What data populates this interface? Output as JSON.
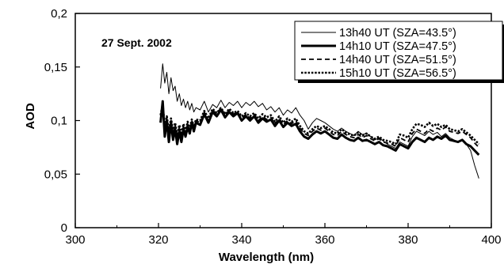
{
  "chart_data": {
    "type": "line",
    "annotation": "27 Sept. 2002",
    "xlabel": "Wavelength (nm)",
    "ylabel": "AOD",
    "xlim": [
      300,
      400
    ],
    "ylim": [
      0,
      0.2
    ],
    "x_ticks": [
      300,
      320,
      340,
      360,
      380,
      400
    ],
    "x_tick_labels": [
      "300",
      "320",
      "340",
      "360",
      "380",
      "400"
    ],
    "y_ticks": [
      0,
      0.05,
      0.1,
      0.15,
      0.2
    ],
    "y_tick_labels": [
      "0",
      "0,05",
      "0,1",
      "0,15",
      "0,2"
    ],
    "grid": false,
    "legend_position": "top-right",
    "series": [
      {
        "name": "13h40 UT (SZA=43.5°)",
        "line_style": "thin-solid",
        "color": "#000000",
        "x": [
          320.5,
          321,
          321.5,
          322,
          322.5,
          323,
          323.5,
          324,
          324.5,
          325,
          325.5,
          326,
          326.5,
          327,
          327.5,
          328,
          328.5,
          329,
          330,
          331,
          332,
          333,
          334,
          335,
          336,
          337,
          338,
          339,
          340,
          341,
          342,
          343,
          344,
          345,
          346,
          347,
          348,
          349,
          350,
          351,
          352,
          353,
          354,
          355,
          356,
          357,
          358,
          359,
          360,
          361,
          362,
          363,
          364,
          365,
          366,
          367,
          368,
          369,
          370,
          371,
          372,
          373,
          374,
          375,
          376,
          377,
          378,
          379,
          380,
          381,
          382,
          383,
          384,
          385,
          386,
          387,
          388,
          389,
          390,
          391,
          392,
          393,
          394,
          395,
          396,
          397
        ],
        "y": [
          0.13,
          0.153,
          0.135,
          0.145,
          0.125,
          0.14,
          0.128,
          0.132,
          0.118,
          0.125,
          0.114,
          0.12,
          0.112,
          0.118,
          0.11,
          0.116,
          0.108,
          0.112,
          0.11,
          0.118,
          0.108,
          0.115,
          0.112,
          0.119,
          0.112,
          0.117,
          0.114,
          0.118,
          0.112,
          0.117,
          0.114,
          0.118,
          0.113,
          0.116,
          0.11,
          0.113,
          0.108,
          0.112,
          0.105,
          0.11,
          0.107,
          0.112,
          0.105,
          0.1,
          0.092,
          0.098,
          0.102,
          0.1,
          0.098,
          0.095,
          0.092,
          0.09,
          0.093,
          0.09,
          0.088,
          0.086,
          0.09,
          0.087,
          0.088,
          0.085,
          0.082,
          0.084,
          0.081,
          0.078,
          0.076,
          0.074,
          0.08,
          0.078,
          0.076,
          0.085,
          0.09,
          0.088,
          0.086,
          0.09,
          0.087,
          0.089,
          0.085,
          0.088,
          0.084,
          0.082,
          0.08,
          0.082,
          0.078,
          0.072,
          0.058,
          0.046
        ]
      },
      {
        "name": "14h10 UT (SZA=47.5°)",
        "line_style": "thick-solid",
        "color": "#000000",
        "x": [
          320.5,
          321,
          321.5,
          322,
          322.5,
          323,
          323.5,
          324,
          324.5,
          325,
          325.5,
          326,
          326.5,
          327,
          327.5,
          328,
          328.5,
          329,
          330,
          331,
          332,
          333,
          334,
          335,
          336,
          337,
          338,
          339,
          340,
          341,
          342,
          343,
          344,
          345,
          346,
          347,
          348,
          349,
          350,
          351,
          352,
          353,
          354,
          355,
          356,
          357,
          358,
          359,
          360,
          361,
          362,
          363,
          364,
          365,
          366,
          367,
          368,
          369,
          370,
          371,
          372,
          373,
          374,
          375,
          376,
          377,
          378,
          379,
          380,
          381,
          382,
          383,
          384,
          385,
          386,
          387,
          388,
          389,
          390,
          391,
          392,
          393,
          394,
          395,
          396,
          397
        ],
        "y": [
          0.098,
          0.118,
          0.085,
          0.1,
          0.08,
          0.098,
          0.082,
          0.092,
          0.078,
          0.09,
          0.08,
          0.092,
          0.085,
          0.094,
          0.088,
          0.098,
          0.09,
          0.098,
          0.096,
          0.106,
          0.098,
          0.108,
          0.104,
          0.11,
          0.103,
          0.108,
          0.104,
          0.107,
          0.1,
          0.104,
          0.1,
          0.104,
          0.098,
          0.102,
          0.099,
          0.101,
          0.095,
          0.1,
          0.094,
          0.098,
          0.095,
          0.097,
          0.09,
          0.085,
          0.083,
          0.087,
          0.09,
          0.088,
          0.09,
          0.087,
          0.084,
          0.083,
          0.087,
          0.084,
          0.082,
          0.081,
          0.084,
          0.081,
          0.082,
          0.08,
          0.078,
          0.08,
          0.077,
          0.076,
          0.074,
          0.072,
          0.078,
          0.076,
          0.074,
          0.08,
          0.084,
          0.082,
          0.08,
          0.084,
          0.082,
          0.085,
          0.083,
          0.086,
          0.082,
          0.081,
          0.08,
          0.082,
          0.078,
          0.076,
          0.072,
          0.068
        ]
      },
      {
        "name": "14h40 UT (SZA=51.5°)",
        "line_style": "dashed",
        "color": "#000000",
        "x": [
          320.5,
          321,
          321.5,
          322,
          322.5,
          323,
          323.5,
          324,
          324.5,
          325,
          325.5,
          326,
          326.5,
          327,
          327.5,
          328,
          328.5,
          329,
          330,
          331,
          332,
          333,
          334,
          335,
          336,
          337,
          338,
          339,
          340,
          341,
          342,
          343,
          344,
          345,
          346,
          347,
          348,
          349,
          350,
          351,
          352,
          353,
          354,
          355,
          356,
          357,
          358,
          359,
          360,
          361,
          362,
          363,
          364,
          365,
          366,
          367,
          368,
          369,
          370,
          371,
          372,
          373,
          374,
          375,
          376,
          377,
          378,
          379,
          380,
          381,
          382,
          383,
          384,
          385,
          386,
          387,
          388,
          389,
          390,
          391,
          392,
          393,
          394,
          395,
          396,
          397
        ],
        "y": [
          0.102,
          0.112,
          0.09,
          0.102,
          0.086,
          0.1,
          0.087,
          0.096,
          0.083,
          0.094,
          0.084,
          0.095,
          0.088,
          0.097,
          0.09,
          0.1,
          0.092,
          0.1,
          0.098,
          0.108,
          0.1,
          0.11,
          0.106,
          0.112,
          0.105,
          0.11,
          0.106,
          0.108,
          0.102,
          0.106,
          0.102,
          0.106,
          0.1,
          0.104,
          0.101,
          0.103,
          0.097,
          0.102,
          0.096,
          0.1,
          0.097,
          0.1,
          0.093,
          0.088,
          0.086,
          0.09,
          0.093,
          0.091,
          0.093,
          0.09,
          0.087,
          0.086,
          0.09,
          0.087,
          0.085,
          0.084,
          0.087,
          0.084,
          0.086,
          0.083,
          0.081,
          0.083,
          0.08,
          0.079,
          0.078,
          0.076,
          0.084,
          0.082,
          0.08,
          0.088,
          0.092,
          0.09,
          0.088,
          0.092,
          0.09,
          0.093,
          0.091,
          0.094,
          0.09,
          0.089,
          0.088,
          0.09,
          0.087,
          0.084,
          0.079,
          0.075
        ]
      },
      {
        "name": "15h10 UT (SZA=56.5°)",
        "line_style": "dotted",
        "color": "#000000",
        "x": [
          320.5,
          321,
          321.5,
          322,
          322.5,
          323,
          323.5,
          324,
          324.5,
          325,
          325.5,
          326,
          326.5,
          327,
          327.5,
          328,
          328.5,
          329,
          330,
          331,
          332,
          333,
          334,
          335,
          336,
          337,
          338,
          339,
          340,
          341,
          342,
          343,
          344,
          345,
          346,
          347,
          348,
          349,
          350,
          351,
          352,
          353,
          354,
          355,
          356,
          357,
          358,
          359,
          360,
          361,
          362,
          363,
          364,
          365,
          366,
          367,
          368,
          369,
          370,
          371,
          372,
          373,
          374,
          375,
          376,
          377,
          378,
          379,
          380,
          381,
          382,
          383,
          384,
          385,
          386,
          387,
          388,
          389,
          390,
          391,
          392,
          393,
          394,
          395,
          396,
          397
        ],
        "y": [
          0.105,
          0.115,
          0.094,
          0.104,
          0.09,
          0.102,
          0.09,
          0.098,
          0.086,
          0.096,
          0.087,
          0.097,
          0.09,
          0.099,
          0.092,
          0.101,
          0.094,
          0.101,
          0.1,
          0.109,
          0.102,
          0.111,
          0.107,
          0.112,
          0.106,
          0.111,
          0.107,
          0.109,
          0.104,
          0.107,
          0.104,
          0.107,
          0.102,
          0.106,
          0.103,
          0.105,
          0.099,
          0.104,
          0.098,
          0.102,
          0.099,
          0.102,
          0.095,
          0.09,
          0.088,
          0.092,
          0.095,
          0.093,
          0.095,
          0.092,
          0.089,
          0.088,
          0.092,
          0.089,
          0.087,
          0.086,
          0.089,
          0.086,
          0.088,
          0.085,
          0.083,
          0.085,
          0.082,
          0.081,
          0.08,
          0.078,
          0.087,
          0.086,
          0.084,
          0.092,
          0.097,
          0.096,
          0.094,
          0.098,
          0.095,
          0.097,
          0.094,
          0.096,
          0.092,
          0.091,
          0.09,
          0.092,
          0.089,
          0.086,
          0.082,
          0.078
        ]
      }
    ]
  }
}
